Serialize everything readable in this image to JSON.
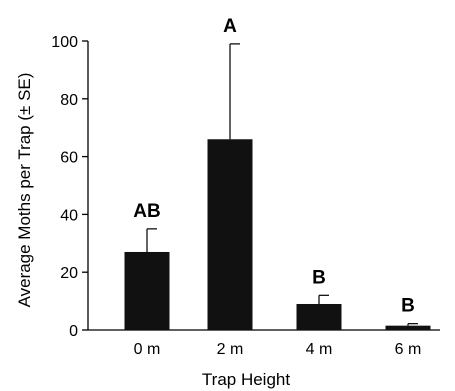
{
  "chart_data": {
    "type": "bar",
    "xlabel": "Trap Height",
    "ylabel": "Average Moths per Trap (± SE)",
    "categories": [
      "0 m",
      "2 m",
      "4 m",
      "6 m"
    ],
    "values": [
      27,
      66,
      9,
      1.5
    ],
    "errors": [
      8,
      33,
      3,
      0.7
    ],
    "significance_labels": [
      "AB",
      "A",
      "B",
      "B"
    ],
    "ylim": [
      0,
      100
    ],
    "yticks": [
      0,
      20,
      40,
      60,
      80,
      100
    ],
    "grid": false,
    "bar_color": "#111111"
  }
}
